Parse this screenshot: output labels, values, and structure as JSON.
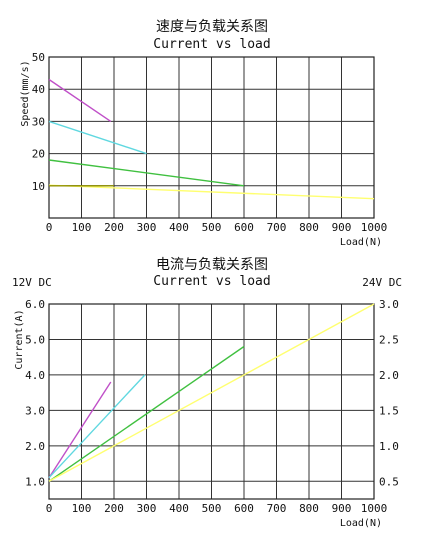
{
  "chart_data": [
    {
      "type": "line",
      "title": "速度与负载关系图",
      "subtitle": "Current vs load",
      "xlabel": "Load(N)",
      "ylabel": "Speed(mm/s)",
      "xlim": [
        0,
        1000
      ],
      "ylim": [
        0,
        50
      ],
      "x_ticks": [
        "0",
        "100",
        "200",
        "300",
        "400",
        "500",
        "600",
        "700",
        "800",
        "900",
        "1000"
      ],
      "y_ticks": [
        "10",
        "20",
        "30",
        "40",
        "50"
      ],
      "grid": true,
      "series": [
        {
          "color": "#c050c8",
          "x": [
            0,
            190
          ],
          "y": [
            43,
            30
          ]
        },
        {
          "color": "#60d8e0",
          "x": [
            0,
            300
          ],
          "y": [
            30,
            20
          ]
        },
        {
          "color": "#40c040",
          "x": [
            0,
            600
          ],
          "y": [
            18,
            10
          ]
        },
        {
          "color": "#ffff70",
          "x": [
            0,
            1000
          ],
          "y": [
            10.2,
            6
          ]
        },
        {
          "color": "#909000",
          "x": [
            0,
            200
          ],
          "y": [
            10,
            10
          ]
        }
      ]
    },
    {
      "type": "line",
      "title": "电流与负载关系图",
      "subtitle": "Current vs load",
      "xlabel": "Load(N)",
      "ylabel": "Current(A)",
      "left_header": "12V DC",
      "right_header": "24V DC",
      "xlim": [
        0,
        1000
      ],
      "ylim": [
        0.5,
        6.0
      ],
      "y2lim": [
        0.25,
        3.0
      ],
      "x_ticks": [
        "0",
        "100",
        "200",
        "300",
        "400",
        "500",
        "600",
        "700",
        "800",
        "900",
        "1000"
      ],
      "y_ticks": [
        "1.0",
        "2.0",
        "3.0",
        "4.0",
        "5.0",
        "6.0"
      ],
      "y2_ticks": [
        "0.5",
        "1.0",
        "1.5",
        "2.0",
        "2.5",
        "3.0"
      ],
      "grid": true,
      "series": [
        {
          "color": "#c050c8",
          "x": [
            0,
            190
          ],
          "y": [
            1.1,
            3.8
          ]
        },
        {
          "color": "#60d8e0",
          "x": [
            0,
            295
          ],
          "y": [
            1.1,
            4.0
          ]
        },
        {
          "color": "#40c040",
          "x": [
            0,
            600
          ],
          "y": [
            1.0,
            4.8
          ]
        },
        {
          "color": "#ffff70",
          "x": [
            0,
            1000
          ],
          "y": [
            1.0,
            6.0
          ]
        }
      ]
    }
  ]
}
